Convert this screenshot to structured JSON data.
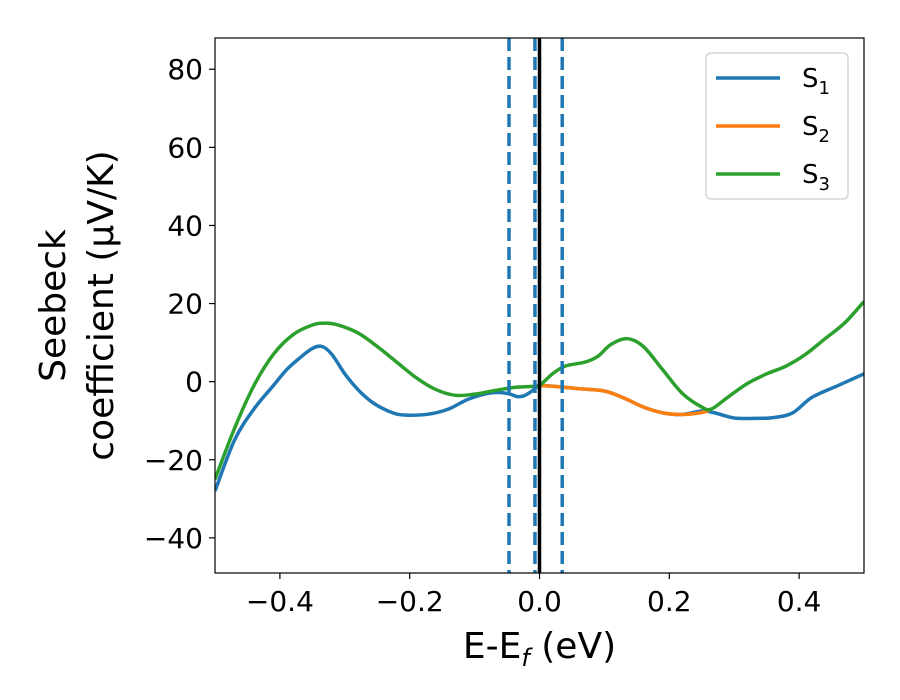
{
  "chart_data": {
    "type": "line",
    "xlabel": "E-E",
    "xlabel_sub": "f",
    "xlabel_unit": " (eV)",
    "ylabel_line1": "Seebeck",
    "ylabel_line2": "coefficient  (μV/K)",
    "xlim": [
      -0.5,
      0.5
    ],
    "ylim": [
      -49,
      88
    ],
    "xticks": [
      -0.4,
      -0.2,
      0.0,
      0.2,
      0.4
    ],
    "xtick_labels": [
      "−0.4",
      "−0.2",
      "0.0",
      "0.2",
      "0.4"
    ],
    "yticks": [
      -40,
      -20,
      0,
      20,
      40,
      60,
      80
    ],
    "ytick_labels": [
      "−40",
      "−20",
      "0",
      "20",
      "40",
      "60",
      "80"
    ],
    "grid": false,
    "legend_position": "top-right",
    "vertical_lines": [
      {
        "x": -0.047,
        "style": "dashed",
        "color": "#1f77b4"
      },
      {
        "x": -0.007,
        "style": "dashed",
        "color": "#1f77b4"
      },
      {
        "x": 0.035,
        "style": "dashed",
        "color": "#1f77b4"
      },
      {
        "x": 0.0,
        "style": "solid",
        "color": "#000000"
      }
    ],
    "series": [
      {
        "name": "S",
        "sub": "1",
        "color": "#1f77b4",
        "x": [
          -0.5,
          -0.47,
          -0.44,
          -0.41,
          -0.39,
          -0.37,
          -0.35,
          -0.335,
          -0.32,
          -0.3,
          -0.28,
          -0.26,
          -0.24,
          -0.22,
          -0.2,
          -0.17,
          -0.14,
          -0.11,
          -0.08,
          -0.06,
          -0.045,
          -0.035,
          -0.025,
          -0.015,
          -0.005,
          0.0,
          0.03,
          0.06,
          0.1,
          0.13,
          0.16,
          0.19,
          0.22,
          0.25,
          0.27,
          0.3,
          0.33,
          0.36,
          0.39,
          0.42,
          0.46,
          0.5
        ],
        "y": [
          -28,
          -15,
          -7,
          -1,
          3,
          6,
          8.5,
          9,
          7,
          2,
          -2,
          -5,
          -7,
          -8.3,
          -8.6,
          -8.3,
          -7,
          -4.5,
          -3,
          -2.8,
          -3.2,
          -3.8,
          -3.7,
          -2.8,
          -1.5,
          -1,
          -1.3,
          -1.8,
          -2.4,
          -4.2,
          -6.5,
          -8,
          -8.4,
          -7.5,
          -8,
          -9.3,
          -9.4,
          -9.2,
          -8,
          -4,
          -1,
          2
        ]
      },
      {
        "name": "S",
        "sub": "2",
        "color": "#ff7f0e",
        "x": [
          0.0,
          0.03,
          0.06,
          0.1,
          0.13,
          0.16,
          0.19,
          0.22,
          0.25,
          0.262
        ],
        "y": [
          -1,
          -1.3,
          -1.8,
          -2.4,
          -4.2,
          -6.5,
          -8,
          -8.4,
          -7.9,
          -7.3
        ]
      },
      {
        "name": "S",
        "sub": "3",
        "color": "#2ca02c",
        "x": [
          -0.5,
          -0.47,
          -0.44,
          -0.41,
          -0.38,
          -0.35,
          -0.33,
          -0.31,
          -0.28,
          -0.25,
          -0.22,
          -0.19,
          -0.16,
          -0.13,
          -0.1,
          -0.07,
          -0.04,
          -0.01,
          0.0,
          0.02,
          0.04,
          0.07,
          0.09,
          0.11,
          0.135,
          0.16,
          0.19,
          0.22,
          0.25,
          0.265,
          0.29,
          0.32,
          0.35,
          0.38,
          0.41,
          0.44,
          0.47,
          0.5
        ],
        "y": [
          -25,
          -12,
          -1,
          7,
          12,
          14.5,
          15,
          14.5,
          12.5,
          9,
          5,
          1,
          -2,
          -3.5,
          -3.2,
          -2.3,
          -1.5,
          -1.2,
          -1,
          2,
          4,
          5,
          6.5,
          9.5,
          11,
          9,
          3,
          -3,
          -6.5,
          -7,
          -4,
          -0.5,
          2,
          4,
          7,
          11,
          15,
          20.5
        ]
      }
    ]
  }
}
